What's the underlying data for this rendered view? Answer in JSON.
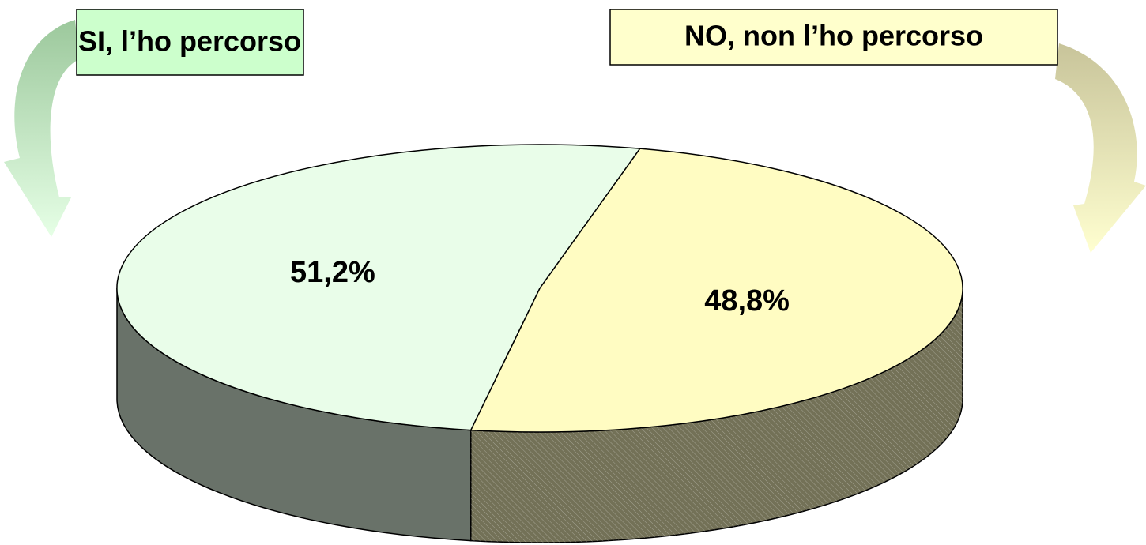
{
  "chart_data": {
    "type": "pie3d",
    "categories": [
      "SI, l’ho percorso",
      "NO, non l’ho percorso"
    ],
    "values": [
      51.2,
      48.8
    ],
    "value_labels": [
      "51,2%",
      "48,8%"
    ],
    "colors": [
      "#e9fde9",
      "#fffcc2"
    ]
  }
}
